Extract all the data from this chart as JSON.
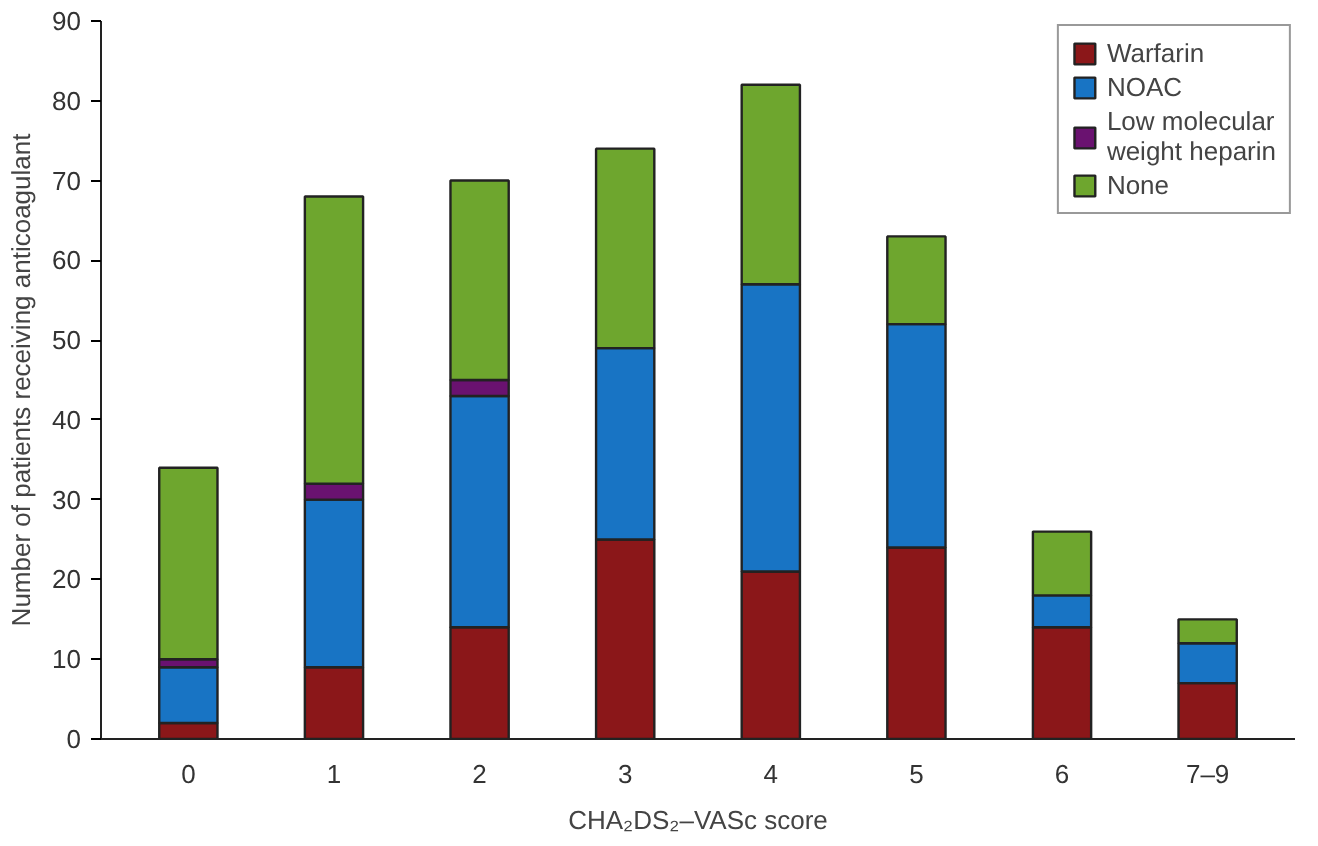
{
  "chart_data": {
    "type": "bar",
    "stacked": true,
    "xlabel": "CHA₂DS₂–VASc score",
    "ylabel": "Number of patients receiving anticoagulant",
    "categories": [
      "0",
      "1",
      "2",
      "3",
      "4",
      "5",
      "6",
      "7–9"
    ],
    "series": [
      {
        "name": "Warfarin",
        "color": "#8b1719",
        "values": [
          2,
          9,
          14,
          25,
          21,
          24,
          14,
          7
        ]
      },
      {
        "name": "NOAC",
        "color": "#1874c4",
        "values": [
          7,
          21,
          29,
          24,
          36,
          28,
          4,
          5
        ]
      },
      {
        "name": "Low molecular weight heparin",
        "color": "#6a1270",
        "values": [
          1,
          2,
          2,
          0,
          0,
          0,
          0,
          0
        ]
      },
      {
        "name": "None",
        "color": "#6ea62e",
        "values": [
          24,
          36,
          25,
          25,
          25,
          11,
          8,
          3
        ]
      }
    ],
    "ylim": [
      0,
      90
    ],
    "yticks": [
      0,
      10,
      20,
      30,
      40,
      50,
      60,
      70,
      80,
      90
    ],
    "grid": false,
    "legend": "top right"
  }
}
